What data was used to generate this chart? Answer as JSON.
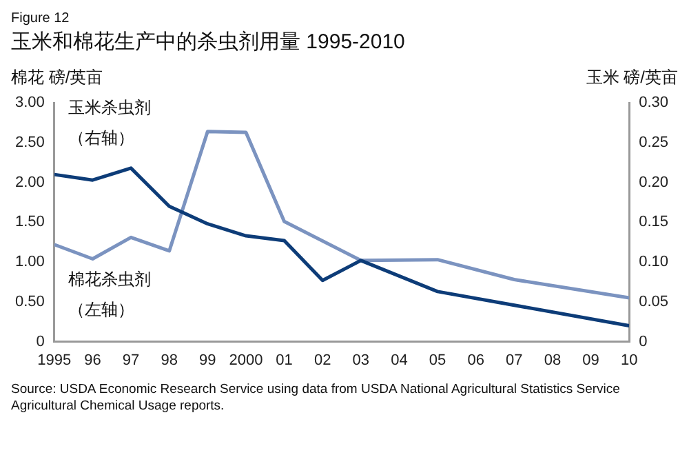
{
  "chart_data": {
    "type": "line",
    "title": "玉米和棉花生产中的杀虫剂用量 1995-2010",
    "subtitle": "Figure 12",
    "ylabel": "棉花 磅/英亩",
    "y2label": "玉米 磅/英亩",
    "annotations": [
      "Source: USDA Economic Research Service using data from USDA National Agricultural Statistics Service Agricultural Chemical Usage reports."
    ],
    "x": [
      1995,
      1996,
      1997,
      1998,
      1999,
      2000,
      2001,
      2002,
      2003,
      2004,
      2005,
      2006,
      2007,
      2008,
      2009,
      2010
    ],
    "series": [
      {
        "name": "玉米杀虫剂（右轴）",
        "color": "#0d3c78",
        "axis": "y2",
        "values": [
          0.21,
          0.203,
          0.218,
          0.17,
          0.148,
          0.133,
          0.127,
          0.077,
          0.102,
          null,
          0.063,
          null,
          null,
          null,
          null,
          0.02
        ]
      },
      {
        "name": "棉花杀虫剂（左轴）",
        "color": "#7b93c0",
        "axis": "y",
        "values": [
          1.22,
          1.04,
          1.31,
          1.14,
          2.64,
          2.63,
          1.51,
          null,
          1.02,
          null,
          1.03,
          null,
          0.78,
          null,
          null,
          0.55
        ]
      }
    ],
    "xlim": [
      1995,
      2010
    ],
    "xticks": [
      1995,
      {
        "value": 1996,
        "label": "96"
      },
      {
        "value": 1997,
        "label": "97"
      },
      {
        "value": 1998,
        "label": "98"
      },
      {
        "value": 1999,
        "label": "99"
      },
      2000,
      {
        "value": 2001,
        "label": "01"
      },
      {
        "value": 2002,
        "label": "02"
      },
      {
        "value": 2003,
        "label": "03"
      },
      {
        "value": 2004,
        "label": "04"
      },
      {
        "value": 2005,
        "label": "05"
      },
      {
        "value": 2006,
        "label": "06"
      },
      {
        "value": 2007,
        "label": "07"
      },
      {
        "value": 2008,
        "label": "08"
      },
      {
        "value": 2009,
        "label": "09"
      },
      {
        "value": 2010,
        "label": "10"
      }
    ],
    "ylim": [
      0,
      3
    ],
    "yticks": [
      {
        "value": 0,
        "label": "0"
      },
      {
        "value": 0.5,
        "label": "0.50"
      },
      {
        "value": 1,
        "label": "1.00"
      },
      {
        "value": 1.5,
        "label": "1.50"
      },
      {
        "value": 2,
        "label": "2.00"
      },
      {
        "value": 2.5,
        "label": "2.50"
      },
      {
        "value": 3,
        "label": "3.00"
      }
    ],
    "y2lim": [
      0,
      0.3
    ],
    "y2ticks": [
      {
        "value": 0,
        "label": "0"
      },
      {
        "value": 0.05,
        "label": "0.05"
      },
      {
        "value": 0.1,
        "label": "0.10"
      },
      {
        "value": 0.15,
        "label": "0.15"
      },
      {
        "value": 0.2,
        "label": "0.20"
      },
      {
        "value": 0.25,
        "label": "0.25"
      },
      {
        "value": 0.3,
        "label": "0.30"
      }
    ],
    "grid": false,
    "legend": false
  }
}
